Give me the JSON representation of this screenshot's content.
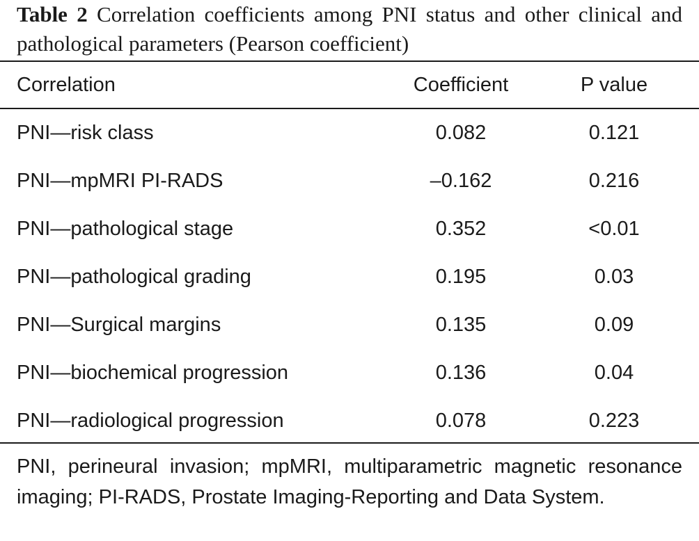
{
  "caption": {
    "label": "Table 2",
    "text": "Correlation coefficients among PNI status and other clinical and pathological parameters (Pearson coefficient)"
  },
  "table": {
    "headers": [
      "Correlation",
      "Coefficient",
      "P value"
    ],
    "rows": [
      [
        "PNI—risk class",
        "0.082",
        "0.121"
      ],
      [
        "PNI—mpMRI PI-RADS",
        "–0.162",
        "0.216"
      ],
      [
        "PNI—pathological stage",
        "0.352",
        "<0.01"
      ],
      [
        "PNI—pathological grading",
        "0.195",
        "0.03"
      ],
      [
        "PNI—Surgical margins",
        "0.135",
        "0.09"
      ],
      [
        "PNI—biochemical progression",
        "0.136",
        "0.04"
      ],
      [
        "PNI—radiological progression",
        "0.078",
        "0.223"
      ]
    ]
  },
  "footnote": "PNI, perineural invasion; mpMRI, multiparametric magnetic resonance imaging; PI-RADS, Prostate Imaging-Reporting and Data System."
}
